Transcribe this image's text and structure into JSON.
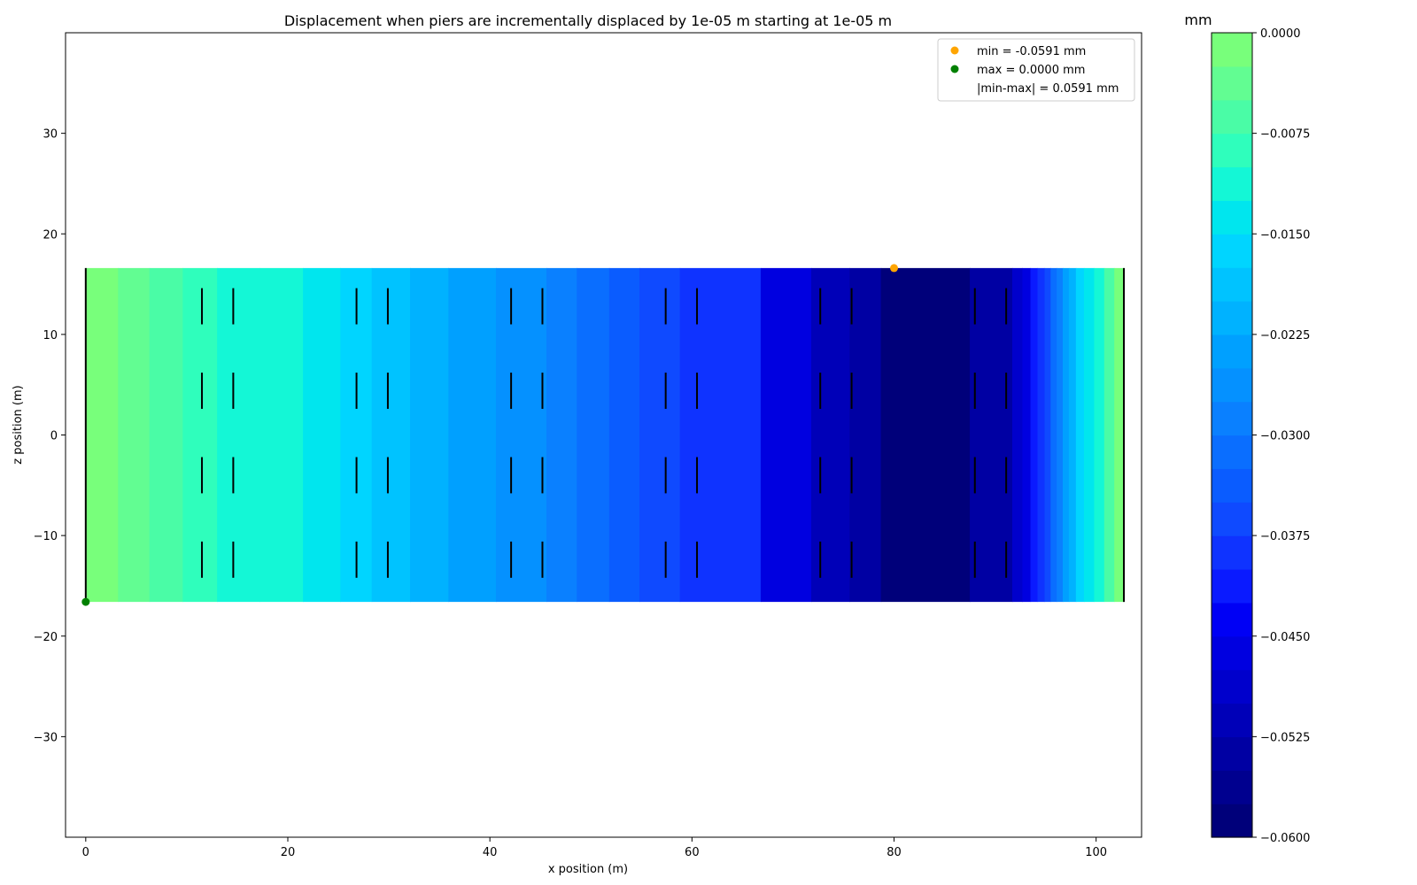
{
  "chart_data": {
    "type": "heatmap",
    "title": "Displacement when piers are incrementally displaced by 1e-05 m starting at 1e-05 m",
    "xlabel": "x position (m)",
    "ylabel": "z position (m)",
    "xlim": [
      -2,
      104.5
    ],
    "ylim": [
      -40,
      40
    ],
    "x_ticks": [
      0,
      20,
      40,
      60,
      80,
      100
    ],
    "x_tick_labels": [
      "0",
      "20",
      "40",
      "60",
      "80",
      "100"
    ],
    "y_ticks": [
      30,
      20,
      10,
      0,
      -10,
      -20,
      -30
    ],
    "y_tick_labels": [
      "30",
      "20",
      "10",
      "0",
      "−10",
      "−20",
      "−30"
    ],
    "deck": {
      "x": [
        0,
        102.75
      ],
      "z": [
        -16.6,
        16.6
      ]
    },
    "contour_bands": [
      {
        "x0": 0,
        "x1": 3.2,
        "value": -0.001
      },
      {
        "x0": 3.2,
        "x1": 6.3,
        "value": -0.004
      },
      {
        "x0": 6.3,
        "x1": 9.6,
        "value": -0.006
      },
      {
        "x0": 9.6,
        "x1": 13.0,
        "value": -0.0085
      },
      {
        "x0": 13.0,
        "x1": 17.2,
        "value": -0.0105
      },
      {
        "x0": 17.2,
        "x1": 21.5,
        "value": -0.0125
      },
      {
        "x0": 21.5,
        "x1": 25.2,
        "value": -0.0145
      },
      {
        "x0": 25.2,
        "x1": 28.3,
        "value": -0.017
      },
      {
        "x0": 28.3,
        "x1": 32.1,
        "value": -0.0195
      },
      {
        "x0": 32.1,
        "x1": 35.9,
        "value": -0.022
      },
      {
        "x0": 35.9,
        "x1": 40.6,
        "value": -0.0245
      },
      {
        "x0": 40.6,
        "x1": 45.6,
        "value": -0.027
      },
      {
        "x0": 45.6,
        "x1": 48.6,
        "value": -0.029
      },
      {
        "x0": 48.6,
        "x1": 51.8,
        "value": -0.0315
      },
      {
        "x0": 51.8,
        "x1": 54.8,
        "value": -0.034
      },
      {
        "x0": 54.8,
        "x1": 58.8,
        "value": -0.036
      },
      {
        "x0": 58.8,
        "x1": 66.8,
        "value": -0.04
      },
      {
        "x0": 66.8,
        "x1": 71.8,
        "value": -0.0455
      },
      {
        "x0": 71.8,
        "x1": 75.6,
        "value": -0.05
      },
      {
        "x0": 75.6,
        "x1": 78.7,
        "value": -0.054
      },
      {
        "x0": 78.7,
        "x1": 87.5,
        "value": -0.058
      },
      {
        "x0": 87.5,
        "x1": 91.7,
        "value": -0.0535
      },
      {
        "x0": 91.7,
        "x1": 92.7,
        "value": -0.049
      },
      {
        "x0": 92.7,
        "x1": 93.5,
        "value": -0.0455
      },
      {
        "x0": 93.5,
        "x1": 94.2,
        "value": -0.042
      },
      {
        "x0": 94.2,
        "x1": 94.9,
        "value": -0.0385
      },
      {
        "x0": 94.9,
        "x1": 95.5,
        "value": -0.035
      },
      {
        "x0": 95.5,
        "x1": 96.1,
        "value": -0.0315
      },
      {
        "x0": 96.1,
        "x1": 96.7,
        "value": -0.028
      },
      {
        "x0": 96.7,
        "x1": 97.3,
        "value": -0.0245
      },
      {
        "x0": 97.3,
        "x1": 98.0,
        "value": -0.021
      },
      {
        "x0": 98.0,
        "x1": 98.8,
        "value": -0.0175
      },
      {
        "x0": 98.8,
        "x1": 99.8,
        "value": -0.014
      },
      {
        "x0": 99.8,
        "x1": 100.8,
        "value": -0.0105
      },
      {
        "x0": 100.8,
        "x1": 101.8,
        "value": -0.007
      },
      {
        "x0": 101.8,
        "x1": 102.75,
        "value": -0.0025
      }
    ],
    "piers": {
      "x": [
        11.5,
        14.6,
        26.8,
        29.9,
        42.1,
        45.2,
        57.4,
        60.5,
        72.7,
        75.8,
        88.0,
        91.1
      ],
      "z_segments": [
        [
          11.0,
          14.6
        ],
        [
          2.6,
          6.2
        ],
        [
          -5.8,
          -2.2
        ],
        [
          -14.2,
          -10.6
        ]
      ]
    },
    "series": [
      {
        "name": "min = -0.0591 mm",
        "x": 80.0,
        "z": 16.6,
        "value": -0.0591,
        "color": "#ffa500"
      },
      {
        "name": "max = 0.0000 mm",
        "x": 0.0,
        "z": -16.6,
        "value": 0.0,
        "color": "#008000"
      }
    ],
    "legend": {
      "placement": "top-right",
      "entries": [
        "min = -0.0591 mm",
        "max = 0.0000 mm",
        "|min-max| = 0.0591 mm"
      ]
    },
    "colorbar": {
      "label": "mm",
      "range": [
        -0.06,
        0.0
      ],
      "levels": 24,
      "tick_values": [
        0.0,
        -0.0075,
        -0.015,
        -0.0225,
        -0.03,
        -0.0375,
        -0.045,
        -0.0525,
        -0.06
      ],
      "tick_labels": [
        "0.0000",
        "−0.0075",
        "−0.0150",
        "−0.0225",
        "−0.0300",
        "−0.0375",
        "−0.0450",
        "−0.0525",
        "−0.0600"
      ],
      "colors": [
        "#00007a",
        "#00008f",
        "#0000a3",
        "#0000b8",
        "#0000cc",
        "#0000e0",
        "#0000f5",
        "#0a1aff",
        "#0f33ff",
        "#0f4aff",
        "#0a5cff",
        "#0a6eff",
        "#0a80ff",
        "#0591ff",
        "#00a0ff",
        "#00b2ff",
        "#00c3ff",
        "#00d5ff",
        "#00e6ee",
        "#14f7d6",
        "#2ffebc",
        "#4afca6",
        "#62fd92",
        "#78ff7b"
      ]
    }
  }
}
